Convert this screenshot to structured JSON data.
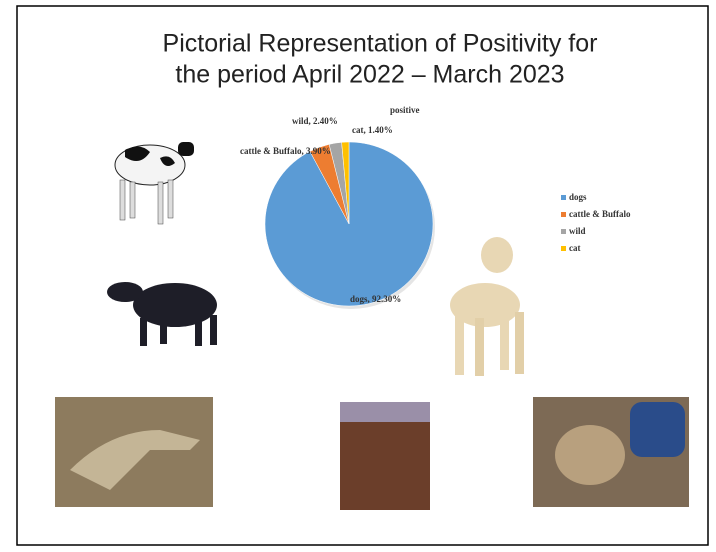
{
  "chart_data": {
    "type": "pie",
    "title": "Pictorial Representation of Positivity for",
    "subtitle": "the period April 2022 – March 2023",
    "chart_title": "positive",
    "categories": [
      "dogs",
      "cattle & Buffalo",
      "wild",
      "cat"
    ],
    "values": [
      92.3,
      3.9,
      2.4,
      1.4
    ],
    "value_labels": [
      "dogs, 92.30%",
      "cattle & Buffalo, 3.90%",
      "wild, 2.40%",
      "cat, 1.40%"
    ],
    "colors": [
      "#5b9bd5",
      "#ed7d31",
      "#a5a5a5",
      "#ffc000"
    ],
    "legend": "right"
  }
}
